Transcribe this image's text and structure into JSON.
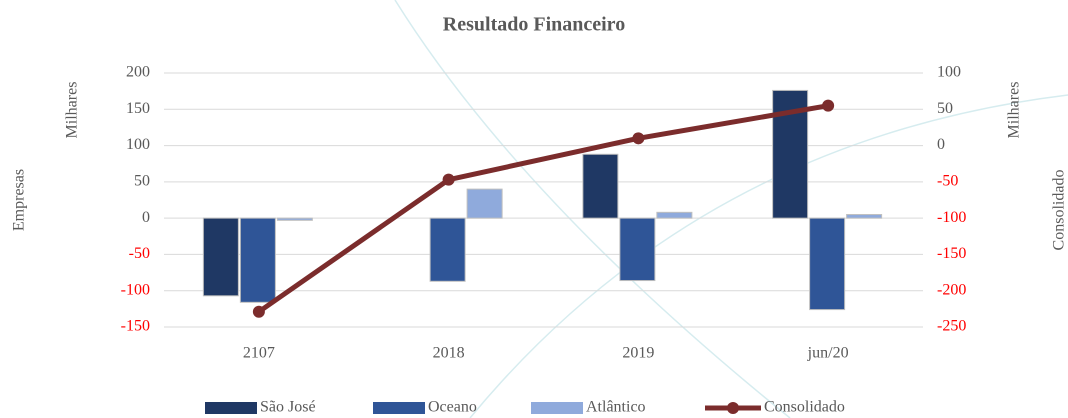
{
  "chart_data": {
    "type": "bar",
    "title": "Resultado Financeiro",
    "categories": [
      "2107",
      "2018",
      "2019",
      "jun/20"
    ],
    "y_label_outer": "Empresas",
    "y_label_inner": "Milhares",
    "y2_label_inner": "Milhares",
    "y2_label_outer": "Consolidado",
    "ylim": [
      -150,
      200
    ],
    "yticks": [
      -150,
      -100,
      -50,
      0,
      50,
      100,
      150,
      200
    ],
    "y2lim": [
      -250,
      100
    ],
    "y2ticks": [
      -250,
      -200,
      -150,
      -100,
      -50,
      0,
      50,
      100
    ],
    "negative_tick_color": "#ff0000",
    "grid": true,
    "series": [
      {
        "name": "São José",
        "type": "bar",
        "color": "#1f3864",
        "values": [
          -107,
          0,
          88,
          176
        ]
      },
      {
        "name": "Oceano",
        "type": "bar",
        "color": "#2f5597",
        "values": [
          -116,
          -87,
          -86,
          -126
        ]
      },
      {
        "name": "Atlântico",
        "type": "bar",
        "color": "#8faadc",
        "values": [
          -3,
          40,
          8,
          5
        ]
      },
      {
        "name": "Consolidado",
        "type": "line",
        "axis": "y2",
        "color": "#7b2c2c",
        "values": [
          -229,
          -47,
          10,
          55
        ]
      }
    ]
  }
}
